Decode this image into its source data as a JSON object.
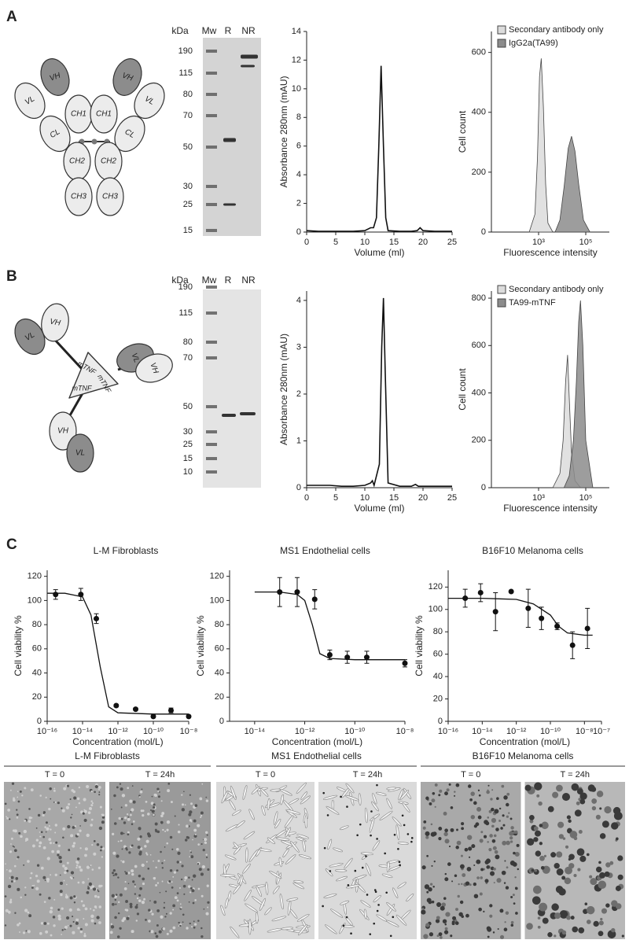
{
  "panel_labels": [
    "A",
    "B",
    "C"
  ],
  "antibody_diagram": {
    "domains": [
      "VL",
      "VH",
      "CH1",
      "CL",
      "CH2",
      "CH3",
      "VH",
      "VL",
      "CH1",
      "CL",
      "CH2",
      "CH3"
    ]
  },
  "fusion_diagram": {
    "domains": [
      "VL",
      "VH",
      "mTNF",
      "mTNF",
      "mTNF",
      "VL",
      "VH",
      "VH",
      "VL"
    ]
  },
  "gels": [
    {
      "header": [
        "kDa",
        "Mw",
        "R",
        "NR"
      ],
      "marker_kda": [
        190,
        115,
        80,
        70,
        50,
        30,
        25,
        15
      ]
    },
    {
      "header": [
        "kDa",
        "Mw",
        "R",
        "NR"
      ],
      "marker_kda": [
        190,
        115,
        80,
        70,
        50,
        30,
        25,
        15,
        10
      ]
    }
  ],
  "chart_data": [
    {
      "type": "line",
      "x_label": "Volume (ml)",
      "y_label": "Absorbance 280nm (mAU)",
      "color": "#111111",
      "x": [
        0,
        2,
        4,
        6,
        8,
        10,
        11,
        11.5,
        12,
        12.4,
        12.8,
        13.2,
        13.6,
        14,
        16,
        18,
        19,
        19.5,
        20,
        22,
        25
      ],
      "values": [
        0.1,
        0.05,
        0.05,
        0.05,
        0.05,
        0.1,
        0.3,
        0.3,
        1.0,
        6,
        11.6,
        6,
        1.0,
        0.1,
        0.05,
        0.05,
        0.1,
        0.3,
        0.1,
        0.05,
        0.05
      ],
      "xlim": [
        0,
        25
      ],
      "xticks": [
        0,
        5,
        10,
        15,
        20,
        25
      ],
      "ylim": [
        0,
        14
      ],
      "yticks": [
        0,
        2,
        4,
        6,
        8,
        10,
        12,
        14
      ]
    },
    {
      "type": "area",
      "x_label": "Fluorescence intensity",
      "y_label": "Cell count",
      "xscale": "log",
      "series": [
        {
          "name": "Secondary antibody only",
          "color": "#dcdcdc",
          "x": [
            400,
            700,
            900,
            1100,
            1300,
            1600,
            2000,
            2500,
            4000
          ],
          "values": [
            0,
            60,
            250,
            520,
            580,
            420,
            160,
            30,
            0
          ]
        },
        {
          "name": "IgG2a(TA99)",
          "color": "#8c8c8c",
          "x": [
            5000,
            8000,
            12000,
            18000,
            25000,
            35000,
            50000,
            80000,
            150000
          ],
          "values": [
            0,
            40,
            150,
            280,
            320,
            270,
            160,
            40,
            0
          ]
        }
      ],
      "xlim": [
        10,
        1000000
      ],
      "xticks": [
        {
          "value": 1000,
          "label": "10³"
        },
        {
          "value": 100000,
          "label": "10⁵"
        }
      ],
      "ylim": [
        0,
        670
      ],
      "yticks": [
        0,
        200,
        400,
        600
      ],
      "legend": "top-left"
    },
    {
      "type": "line",
      "x_label": "Volume (ml)",
      "y_label": "Absorbance 280nm (mAU)",
      "color": "#111111",
      "x": [
        0,
        2,
        4,
        6,
        8,
        10,
        11,
        11.3,
        11.6,
        12.5,
        12.9,
        13.2,
        13.5,
        14,
        16,
        18,
        18.7,
        19.2,
        20,
        22,
        25
      ],
      "values": [
        0.05,
        0.05,
        0.05,
        0.03,
        0.03,
        0.05,
        0.1,
        0.15,
        0.05,
        0.5,
        3,
        4.05,
        2.5,
        0.1,
        0.03,
        0.03,
        0.07,
        0.03,
        0.03,
        0.03,
        0.03
      ],
      "xlim": [
        0,
        25
      ],
      "xticks": [
        0,
        5,
        10,
        15,
        20,
        25
      ],
      "ylim": [
        0,
        4.2
      ],
      "yticks": [
        0,
        1,
        2,
        3,
        4
      ]
    },
    {
      "type": "area",
      "x_label": "Fluorescence intensity",
      "y_label": "Cell count",
      "xscale": "log",
      "series": [
        {
          "name": "Secondary antibody only",
          "color": "#dcdcdc",
          "x": [
            4000,
            8000,
            11000,
            14000,
            17000,
            20000,
            25000,
            35000,
            60000
          ],
          "values": [
            0,
            60,
            200,
            450,
            560,
            380,
            150,
            30,
            0
          ]
        },
        {
          "name": "TA99-mTNF",
          "color": "#8c8c8c",
          "x": [
            12000,
            20000,
            30000,
            40000,
            50000,
            60000,
            75000,
            100000,
            200000
          ],
          "values": [
            0,
            50,
            200,
            450,
            700,
            790,
            600,
            200,
            0
          ]
        }
      ],
      "xlim": [
        10,
        1000000
      ],
      "xticks": [
        {
          "value": 1000,
          "label": "10³"
        },
        {
          "value": 100000,
          "label": "10⁵"
        }
      ],
      "ylim": [
        0,
        830
      ],
      "yticks": [
        0,
        200,
        400,
        600,
        800
      ],
      "legend": "top-left"
    },
    {
      "type": "scatter",
      "title": "L-M Fibroblasts",
      "x_label": "Concentration (mol/L)",
      "y_label": "Cell viability %",
      "xscale": "log",
      "color": "#111111",
      "x": [
        3e-16,
        8e-15,
        6e-14,
        8e-13,
        1e-11,
        1e-10,
        1e-09,
        1e-08
      ],
      "values": [
        105,
        105,
        85,
        13,
        10,
        4,
        9,
        4
      ],
      "errors": [
        4,
        5,
        4,
        1,
        1,
        1,
        2,
        1
      ],
      "fit": {
        "x": [
          1e-16,
          1e-15,
          1e-14,
          3e-14,
          1e-13,
          3e-13,
          1e-12,
          1e-10,
          1e-08
        ],
        "values": [
          106,
          106,
          103,
          88,
          45,
          12,
          7,
          6,
          6
        ]
      },
      "xlim": [
        1e-16,
        1e-08
      ],
      "xticks": [
        {
          "value": 1e-16,
          "label": "10⁻¹⁶"
        },
        {
          "value": 1e-14,
          "label": "10⁻¹⁴"
        },
        {
          "value": 1e-12,
          "label": "10⁻¹²"
        },
        {
          "value": 1e-10,
          "label": "10⁻¹⁰"
        },
        {
          "value": 1e-08,
          "label": "10⁻⁸"
        }
      ],
      "ylim": [
        0,
        125
      ],
      "yticks": [
        0,
        20,
        40,
        60,
        80,
        100,
        120
      ]
    },
    {
      "type": "scatter",
      "title": "MS1 Endothelial cells",
      "x_label": "Concentration (mol/L)",
      "y_label": "Cell viability %",
      "xscale": "log",
      "color": "#111111",
      "x": [
        1e-13,
        5e-13,
        2.5e-12,
        1e-11,
        5e-11,
        3e-10,
        1e-08
      ],
      "values": [
        107,
        107,
        101,
        55,
        53,
        53,
        48
      ],
      "errors": [
        12,
        12,
        8,
        4,
        5,
        5,
        3
      ],
      "fit": {
        "x": [
          1e-14,
          1e-13,
          5e-13,
          1e-12,
          2e-12,
          4e-12,
          1e-11,
          1e-10,
          1e-08
        ],
        "values": [
          107,
          107,
          105,
          100,
          80,
          56,
          52,
          51,
          51
        ]
      },
      "xlim": [
        1e-15,
        1e-08
      ],
      "xticks": [
        {
          "value": 1e-14,
          "label": "10⁻¹⁴"
        },
        {
          "value": 1e-12,
          "label": "10⁻¹²"
        },
        {
          "value": 1e-10,
          "label": "10⁻¹⁰"
        },
        {
          "value": 1e-08,
          "label": "10⁻⁸"
        }
      ],
      "ylim": [
        0,
        125
      ],
      "yticks": [
        0,
        20,
        40,
        60,
        80,
        100,
        120
      ]
    },
    {
      "type": "scatter",
      "title": "B16F10 Melanoma cells",
      "x_label": "Concentration (mol/L)",
      "y_label": "Cell viability %",
      "xscale": "log",
      "color": "#111111",
      "x": [
        1e-15,
        8e-15,
        6e-14,
        5e-13,
        5e-12,
        3e-11,
        2.5e-10,
        2e-09,
        1.5e-08
      ],
      "values": [
        110,
        115,
        98,
        116,
        101,
        92,
        85,
        68,
        83
      ],
      "errors": [
        8,
        8,
        17,
        0,
        17,
        10,
        3,
        12,
        18
      ],
      "fit": {
        "x": [
          1e-16,
          1e-14,
          1e-12,
          1e-11,
          1e-10,
          3e-10,
          1e-09,
          1e-08,
          3e-08
        ],
        "values": [
          110,
          110,
          109,
          105,
          95,
          85,
          79,
          77,
          77
        ]
      },
      "xlim": [
        1e-16,
        1e-07
      ],
      "xticks": [
        {
          "value": 1e-16,
          "label": "10⁻¹⁶"
        },
        {
          "value": 1e-14,
          "label": "10⁻¹⁴"
        },
        {
          "value": 1e-12,
          "label": "10⁻¹²"
        },
        {
          "value": 1e-10,
          "label": "10⁻¹⁰"
        },
        {
          "value": 1e-08,
          "label": "10⁻⁸"
        },
        {
          "value": 1e-07,
          "label": "10⁻⁷"
        }
      ],
      "ylim": [
        0,
        135
      ],
      "yticks": [
        0,
        20,
        40,
        60,
        80,
        100,
        120
      ]
    }
  ],
  "micrographs": [
    {
      "title": "L-M Fibroblasts",
      "times": [
        "T = 0",
        "T = 24h"
      ]
    },
    {
      "title": "MS1 Endothelial cells",
      "times": [
        "T = 0",
        "T = 24h"
      ]
    },
    {
      "title": "B16F10 Melanoma cells",
      "times": [
        "T = 0",
        "T = 24h"
      ]
    }
  ]
}
